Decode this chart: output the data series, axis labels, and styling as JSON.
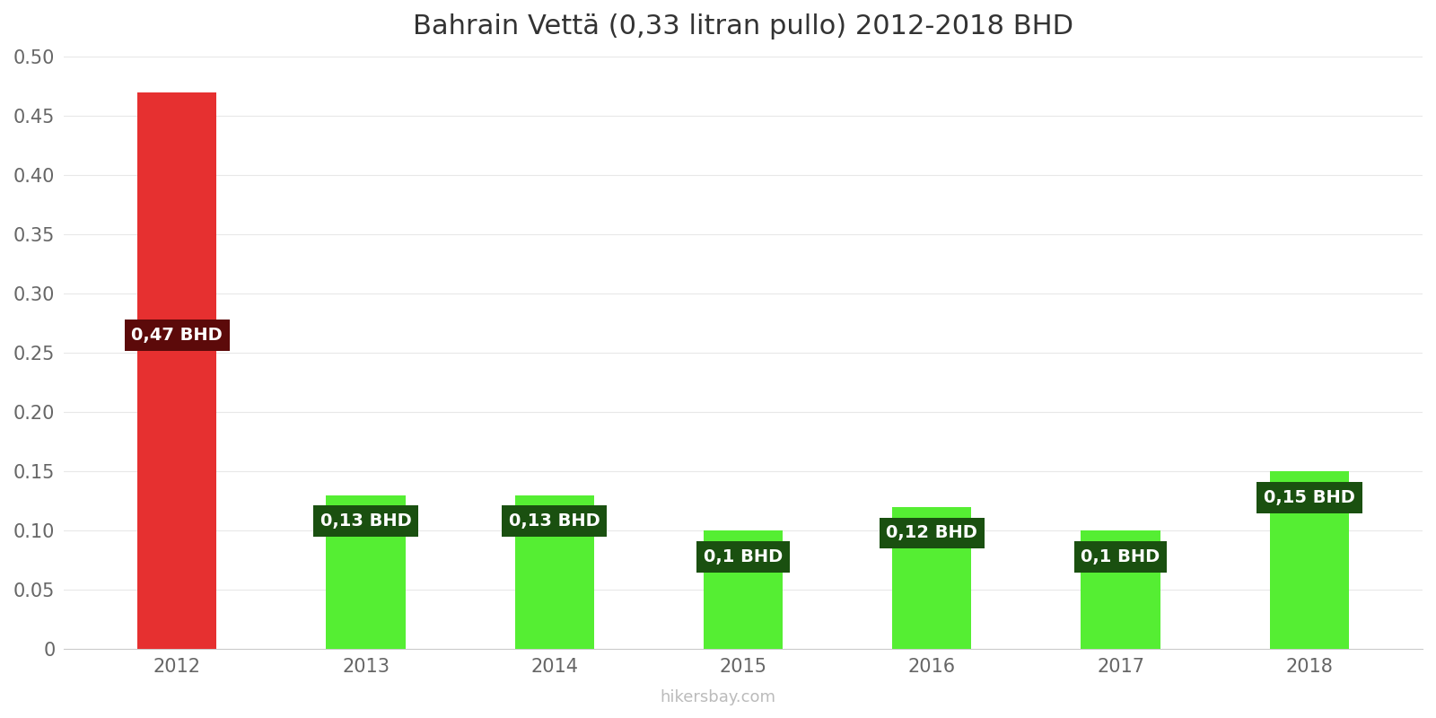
{
  "title": "Bahrain Vettä (0,33 litran pullo) 2012-2018 BHD",
  "categories": [
    "2012",
    "2013",
    "2014",
    "2015",
    "2016",
    "2017",
    "2018"
  ],
  "values": [
    0.47,
    0.13,
    0.13,
    0.1,
    0.12,
    0.1,
    0.15
  ],
  "labels": [
    "0,47 BHD",
    "0,13 BHD",
    "0,13 BHD",
    "0,1 BHD",
    "0,12 BHD",
    "0,1 BHD",
    "0,15 BHD"
  ],
  "bar_colors": [
    "#e63030",
    "#55ee33",
    "#55ee33",
    "#55ee33",
    "#55ee33",
    "#55ee33",
    "#55ee33"
  ],
  "label_bg_colors": [
    "#5c0a0a",
    "#1a5010",
    "#1a5010",
    "#1a5010",
    "#1a5010",
    "#1a5010",
    "#1a5010"
  ],
  "ylim": [
    0,
    0.5
  ],
  "yticks": [
    0,
    0.05,
    0.1,
    0.15,
    0.2,
    0.25,
    0.3,
    0.35,
    0.4,
    0.45,
    0.5
  ],
  "background_color": "#ffffff",
  "grid_color": "#e8e8e8",
  "title_fontsize": 22,
  "tick_fontsize": 15,
  "label_fontsize": 14,
  "watermark": "hikersbay.com",
  "bar_width": 0.42
}
